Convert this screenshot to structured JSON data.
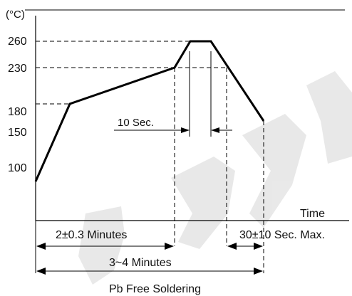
{
  "y_unit": "(°C)",
  "y_ticks": [
    "260",
    "230",
    "180",
    "150",
    "100"
  ],
  "x_label": "Time",
  "annotations": {
    "peak_time": "10 Sec.",
    "preheat": "2±0.3 Minutes",
    "cooling": "30±10 Sec. Max.",
    "total": "3~4 Minutes"
  },
  "caption": "Pb Free Soldering",
  "curve_profile": [
    {
      "phase": "start",
      "temp_c": 100
    },
    {
      "phase": "preheat start",
      "temp_c": 180
    },
    {
      "phase": "preheat end",
      "temp_c": 230
    },
    {
      "phase": "peak start",
      "temp_c": 260
    },
    {
      "phase": "peak end",
      "temp_c": 260
    },
    {
      "phase": "end",
      "temp_c": 150
    }
  ]
}
